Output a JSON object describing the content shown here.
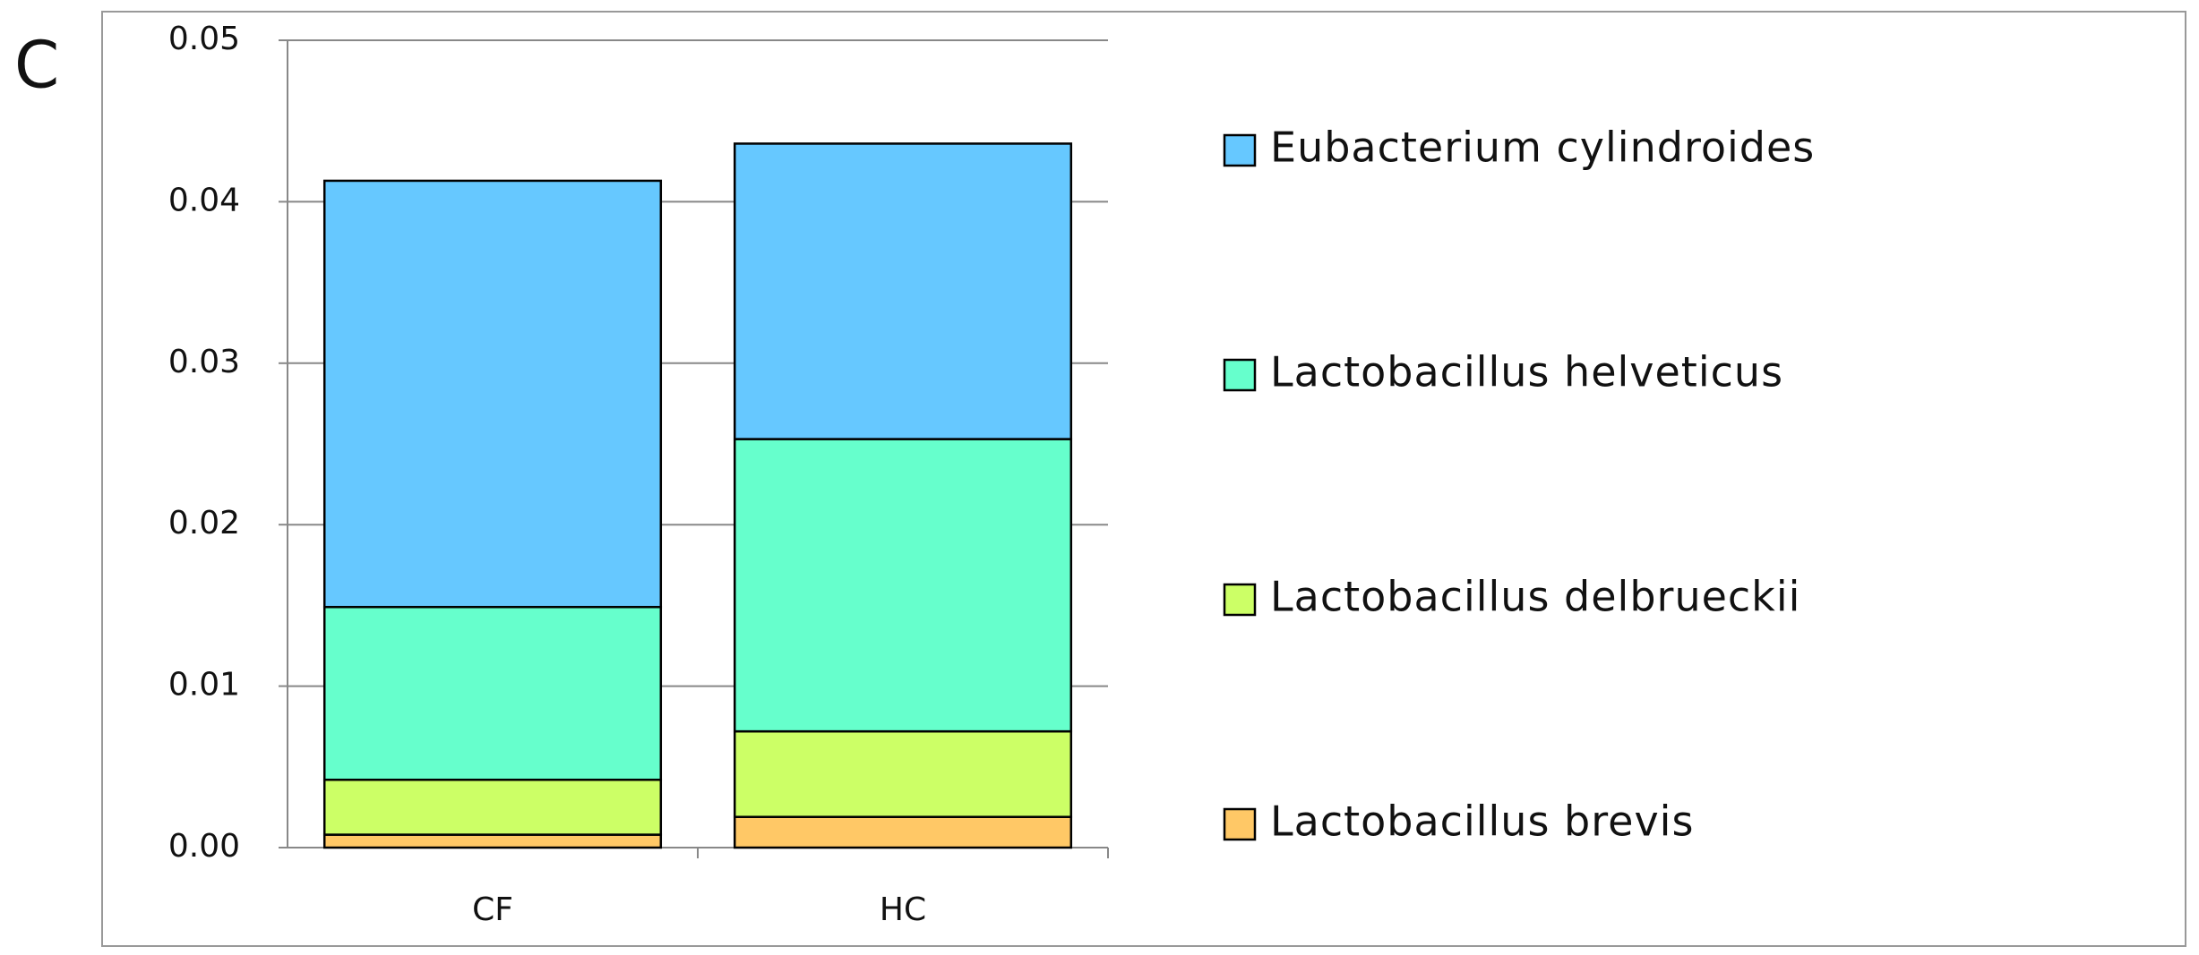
{
  "chart_data": {
    "type": "stacked_bar",
    "panel_label": "C",
    "categories": [
      "CF",
      "HC"
    ],
    "series": [
      {
        "name": "Lactobacillus brevis",
        "color": "#ffc866",
        "values": [
          0.0008,
          0.0019
        ]
      },
      {
        "name": "Lactobacillus delbrueckii",
        "color": "#ccff66",
        "values": [
          0.0034,
          0.0053
        ]
      },
      {
        "name": "Lactobacillus helveticus",
        "color": "#66ffcc",
        "values": [
          0.0107,
          0.0181
        ]
      },
      {
        "name": "Eubacterium cylindroides",
        "color": "#66c8ff",
        "values": [
          0.0264,
          0.0183
        ]
      }
    ],
    "ylim": [
      0,
      0.05
    ],
    "yticks": [
      {
        "value": 0,
        "label": "0.00"
      },
      0.01,
      0.02,
      0.03,
      0.04,
      0.05
    ],
    "grid": true,
    "legend": "right"
  }
}
